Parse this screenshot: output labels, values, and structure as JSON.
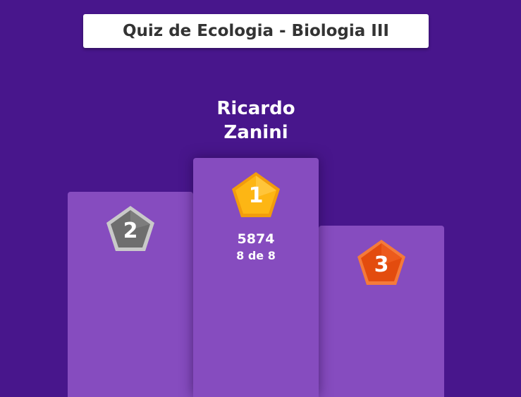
{
  "title": "Quiz de Ecologia - Biologia III",
  "winner": {
    "name_line1": "Ricardo",
    "name_line2": "Zanini"
  },
  "podium": [
    {
      "rank": "1",
      "points": "5874",
      "correct": "8 de 8",
      "medal_color": "#fdb614"
    },
    {
      "rank": "2",
      "medal_color": "#6e6e6e"
    },
    {
      "rank": "3",
      "medal_color": "#e34c0e"
    }
  ],
  "colors": {
    "background": "#48168c",
    "podium": "#864cbf",
    "title_box": "#ffffff"
  }
}
